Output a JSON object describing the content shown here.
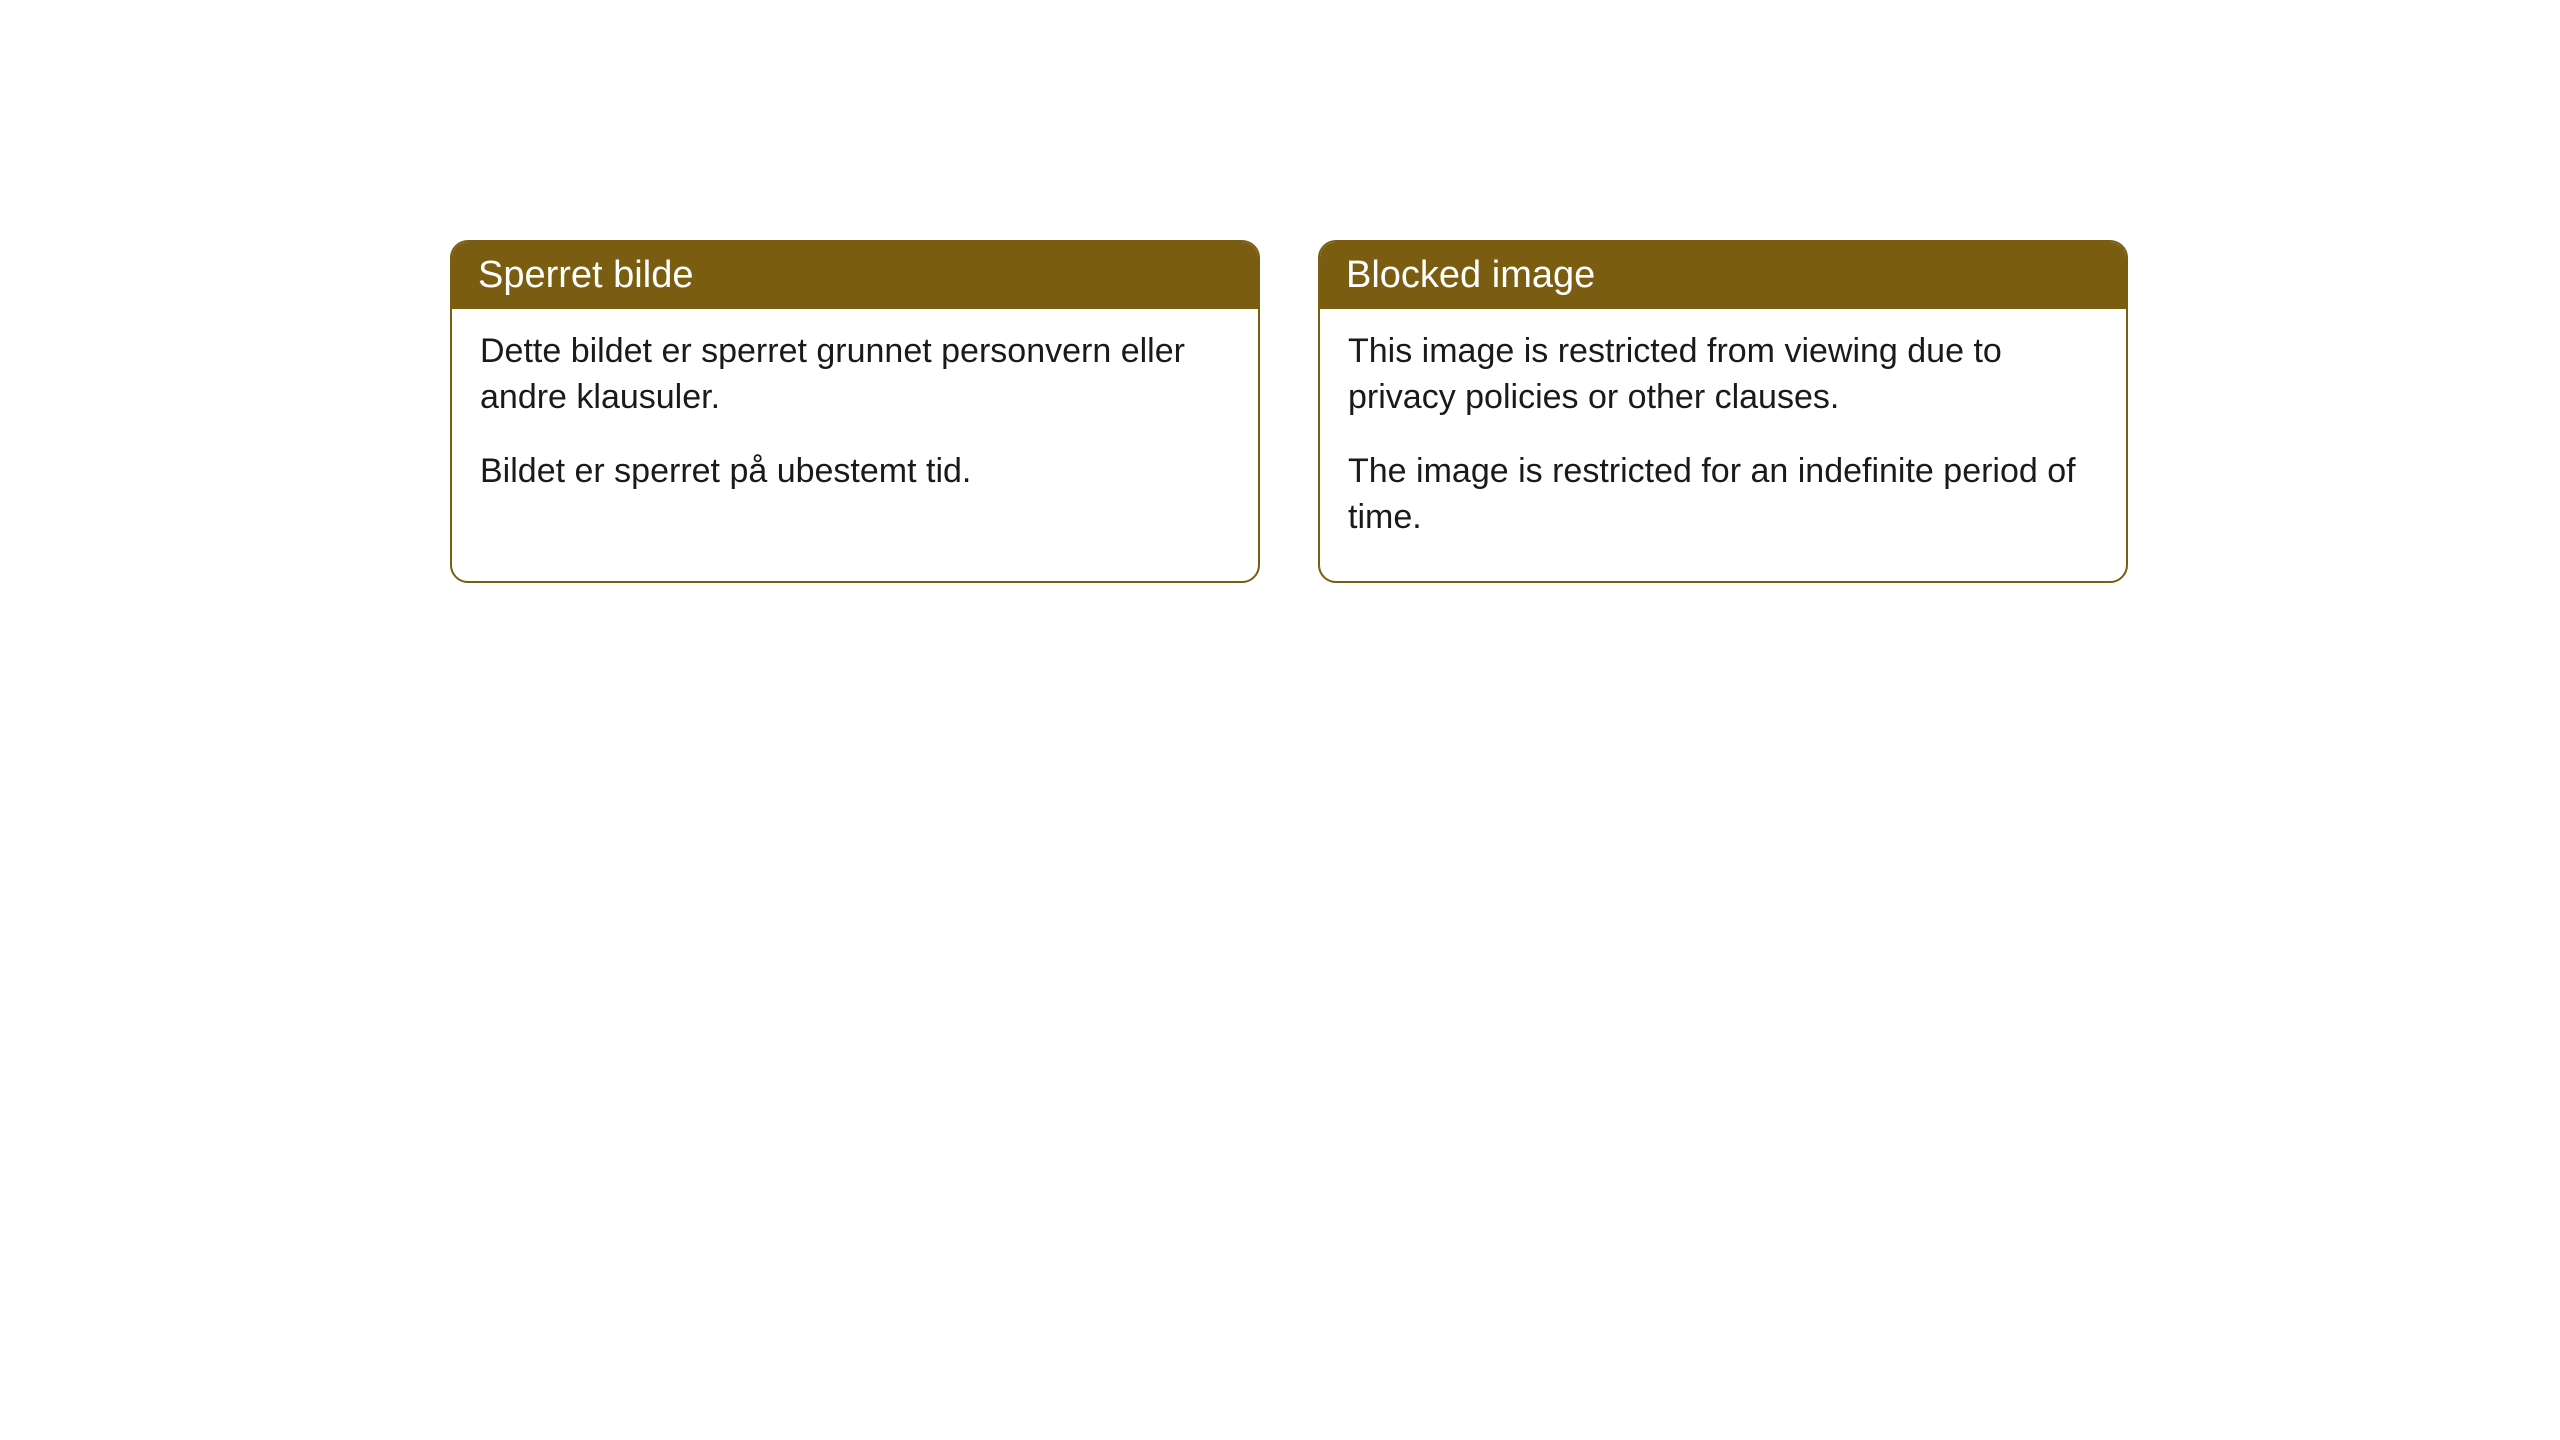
{
  "cards": [
    {
      "title": "Sperret bilde",
      "paragraph1": "Dette bildet er sperret grunnet personvern eller andre klausuler.",
      "paragraph2": "Bildet er sperret på ubestemt tid."
    },
    {
      "title": "Blocked image",
      "paragraph1": "This image is restricted from viewing due to privacy policies or other clauses.",
      "paragraph2": "The image is restricted for an indefinite period of time."
    }
  ],
  "styling": {
    "header_background_color": "#7a5d10",
    "header_text_color": "#ffffff",
    "border_color": "#7a5d10",
    "body_background_color": "#ffffff",
    "body_text_color": "#1a1a1a",
    "border_radius": 18,
    "title_fontsize": 38,
    "body_fontsize": 34
  }
}
